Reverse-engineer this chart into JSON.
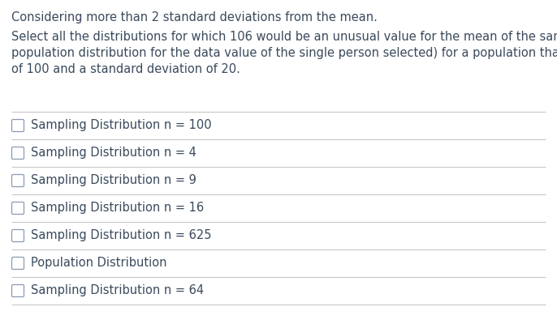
{
  "background_color": "#ffffff",
  "header_text": "Considering more than 2 standard deviations from the mean.",
  "body_lines": [
    "Select all the distributions for which 106 would be an unusual value for the mean of the sample (or in the",
    "population distribution for the data value of the single person selected) for a population that has a mean",
    "of 100 and a standard deviation of 20."
  ],
  "options": [
    "Sampling Distribution n = 100",
    "Sampling Distribution n = 4",
    "Sampling Distribution n = 9",
    "Sampling Distribution n = 16",
    "Sampling Distribution n = 625",
    "Population Distribution",
    "Sampling Distribution n = 64"
  ],
  "text_color": "#3a4a5c",
  "line_color": "#c8c8c8",
  "checkbox_color": "#ffffff",
  "checkbox_border": "#8a9bb0",
  "header_fontsize": 10.5,
  "body_fontsize": 10.5,
  "option_fontsize": 10.5
}
